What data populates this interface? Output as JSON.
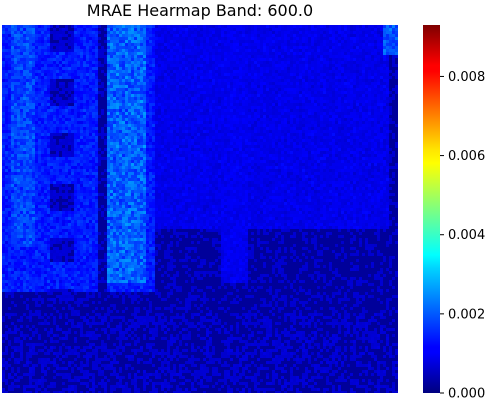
{
  "chart_data": {
    "type": "heatmap",
    "title": "MRAE Hearmap Band: 600.0",
    "xlabel": "",
    "ylabel": "",
    "colormap": "jet",
    "colorbar": {
      "vmin": 0.0,
      "vmax": 0.0093,
      "ticks": [
        0.0,
        0.002,
        0.004,
        0.006,
        0.008
      ],
      "tick_labels": [
        "0.000",
        "0.002",
        "0.004",
        "0.006",
        "0.008"
      ]
    },
    "axes_visible": false,
    "grid": false
  }
}
